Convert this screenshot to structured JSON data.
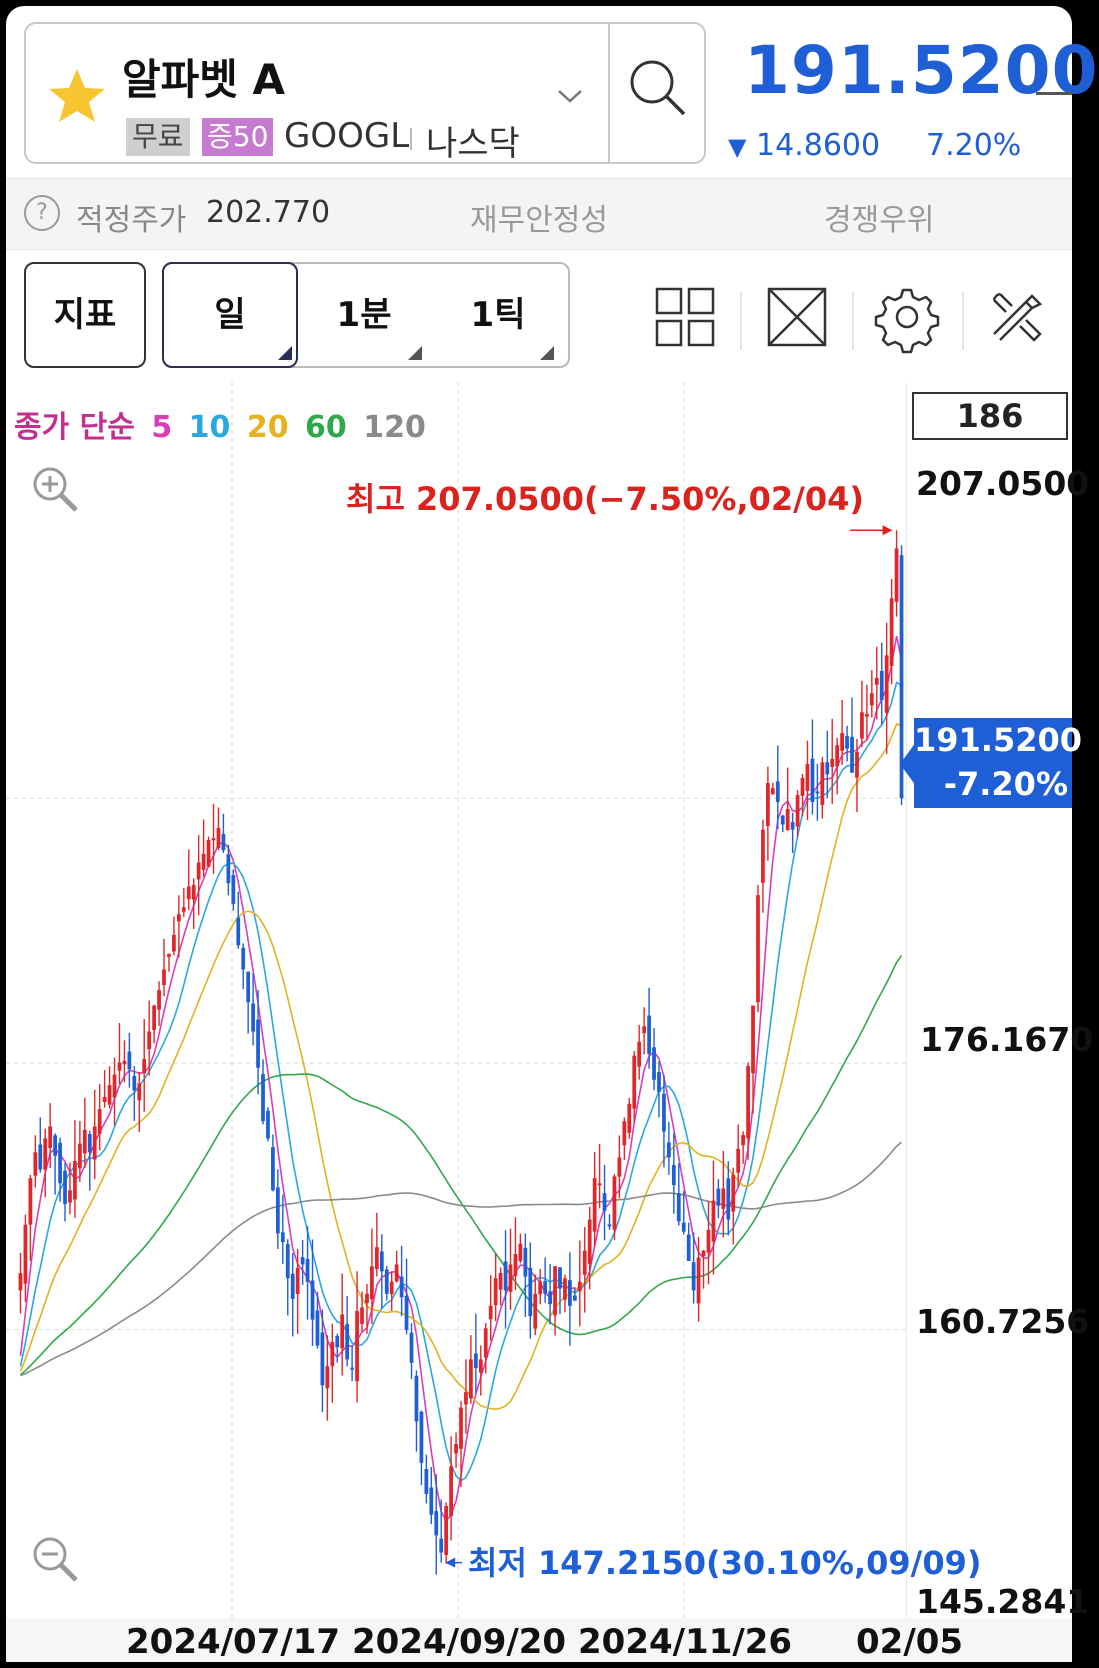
{
  "header": {
    "stock_name": "알파벳 A",
    "badge_free": "무료",
    "badge_margin": "증50",
    "ticker": "GOOGL",
    "market": "나스닥",
    "price": "191.5200",
    "change": "14.8600",
    "change_pct": "7.20%",
    "favorite_icon": "star-icon",
    "accent_color": "#1f5fd6"
  },
  "info_bar": {
    "fair_price_label": "적정주가",
    "fair_price_value": "202.770",
    "stability_label": "재무안정성",
    "competitive_label": "경쟁우위"
  },
  "toolbar": {
    "indicator_label": "지표",
    "periods": [
      "일",
      "1분",
      "1틱"
    ],
    "tools": [
      "grid-layout-icon",
      "fullscreen-icon",
      "settings-icon",
      "tools-icon"
    ]
  },
  "chart_legend": {
    "title": "종가 단순",
    "periods": [
      {
        "label": "5",
        "color": "#d63fb8"
      },
      {
        "label": "10",
        "color": "#29a8e0"
      },
      {
        "label": "20",
        "color": "#e3b21e"
      },
      {
        "label": "60",
        "color": "#2fa84a"
      },
      {
        "label": "120",
        "color": "#8a8a8a"
      }
    ],
    "volume_box": "186"
  },
  "annotations": {
    "high_label": "최고 207.0500(−7.50%,02/04)",
    "low_label": "최저 147.2150(30.10%,09/09)",
    "current_price": "191.5200",
    "current_pct": "-7.20%"
  },
  "chart_data": {
    "type": "candlestick",
    "y_ticks": [
      "207.0500",
      "176.1670",
      "160.7256",
      "145.2841"
    ],
    "x_ticks": [
      "2024/07/17",
      "2024/09/20",
      "2024/11/26",
      "02/05"
    ],
    "ylim": [
      145.2841,
      209.5
    ],
    "up_color": "#e0262a",
    "down_color": "#1f5fd6",
    "high": 207.05,
    "low": 147.215,
    "last_close": 191.52,
    "closes": [
      164.0,
      166.8,
      169.5,
      171.0,
      170.0,
      171.8,
      172.5,
      170.8,
      169.2,
      168.0,
      168.8,
      170.5,
      171.5,
      172.3,
      171.0,
      172.5,
      173.5,
      174.2,
      174.9,
      175.5,
      176.2,
      176.3,
      175.8,
      174.6,
      175.0,
      176.4,
      178.0,
      179.5,
      180.4,
      181.6,
      182.5,
      183.6,
      184.8,
      185.2,
      186.4,
      186.5,
      187.8,
      188.3,
      189.1,
      189.2,
      189.8,
      188.5,
      186.6,
      185.4,
      183.0,
      181.6,
      179.7,
      178.0,
      175.9,
      172.8,
      171.8,
      168.8,
      166.3,
      165.8,
      163.7,
      162.5,
      164.3,
      164.5,
      163.5,
      161.3,
      159.8,
      157.5,
      158.6,
      160.0,
      159.7,
      161.6,
      159.0,
      158.5,
      161.8,
      162.0,
      162.8,
      164.4,
      165.5,
      164.1,
      162.8,
      163.5,
      164.5,
      162.6,
      160.7,
      158.8,
      155.4,
      153.0,
      151.2,
      150.0,
      148.8,
      147.8,
      150.5,
      152.8,
      154.1,
      156.2,
      157.1,
      159.0,
      158.5,
      159.0,
      160.8,
      162.1,
      163.7,
      164.0,
      163.0,
      164.5,
      165.1,
      165.7,
      163.8,
      161.5,
      162.8,
      163.5,
      162.8,
      162.2,
      164.4,
      163.1,
      163.7,
      162.1,
      162.4,
      163.5,
      165.3,
      167.1,
      169.5,
      169.2,
      167.6,
      166.8,
      169.6,
      170.7,
      172.8,
      173.8,
      176.6,
      177.4,
      178.3,
      176.7,
      175.2,
      174.5,
      172.2,
      170.7,
      169.1,
      167.0,
      166.4,
      164.7,
      163.0,
      164.9,
      165.3,
      166.5,
      168.2,
      167.9,
      168.9,
      167.1,
      169.7,
      171.2,
      172.0,
      176.0,
      179.5,
      185.9,
      189.7,
      192.4,
      192.1,
      191.3,
      190.0,
      190.9,
      189.7,
      191.7,
      192.7,
      193.5,
      191.3,
      191.9,
      193.6,
      192.9,
      193.8,
      194.6,
      195.3,
      194.4,
      193.0,
      194.2,
      196.5,
      196.4,
      197.6,
      198.5,
      197.2,
      199.8,
      203.1,
      206.0,
      191.52
    ]
  }
}
